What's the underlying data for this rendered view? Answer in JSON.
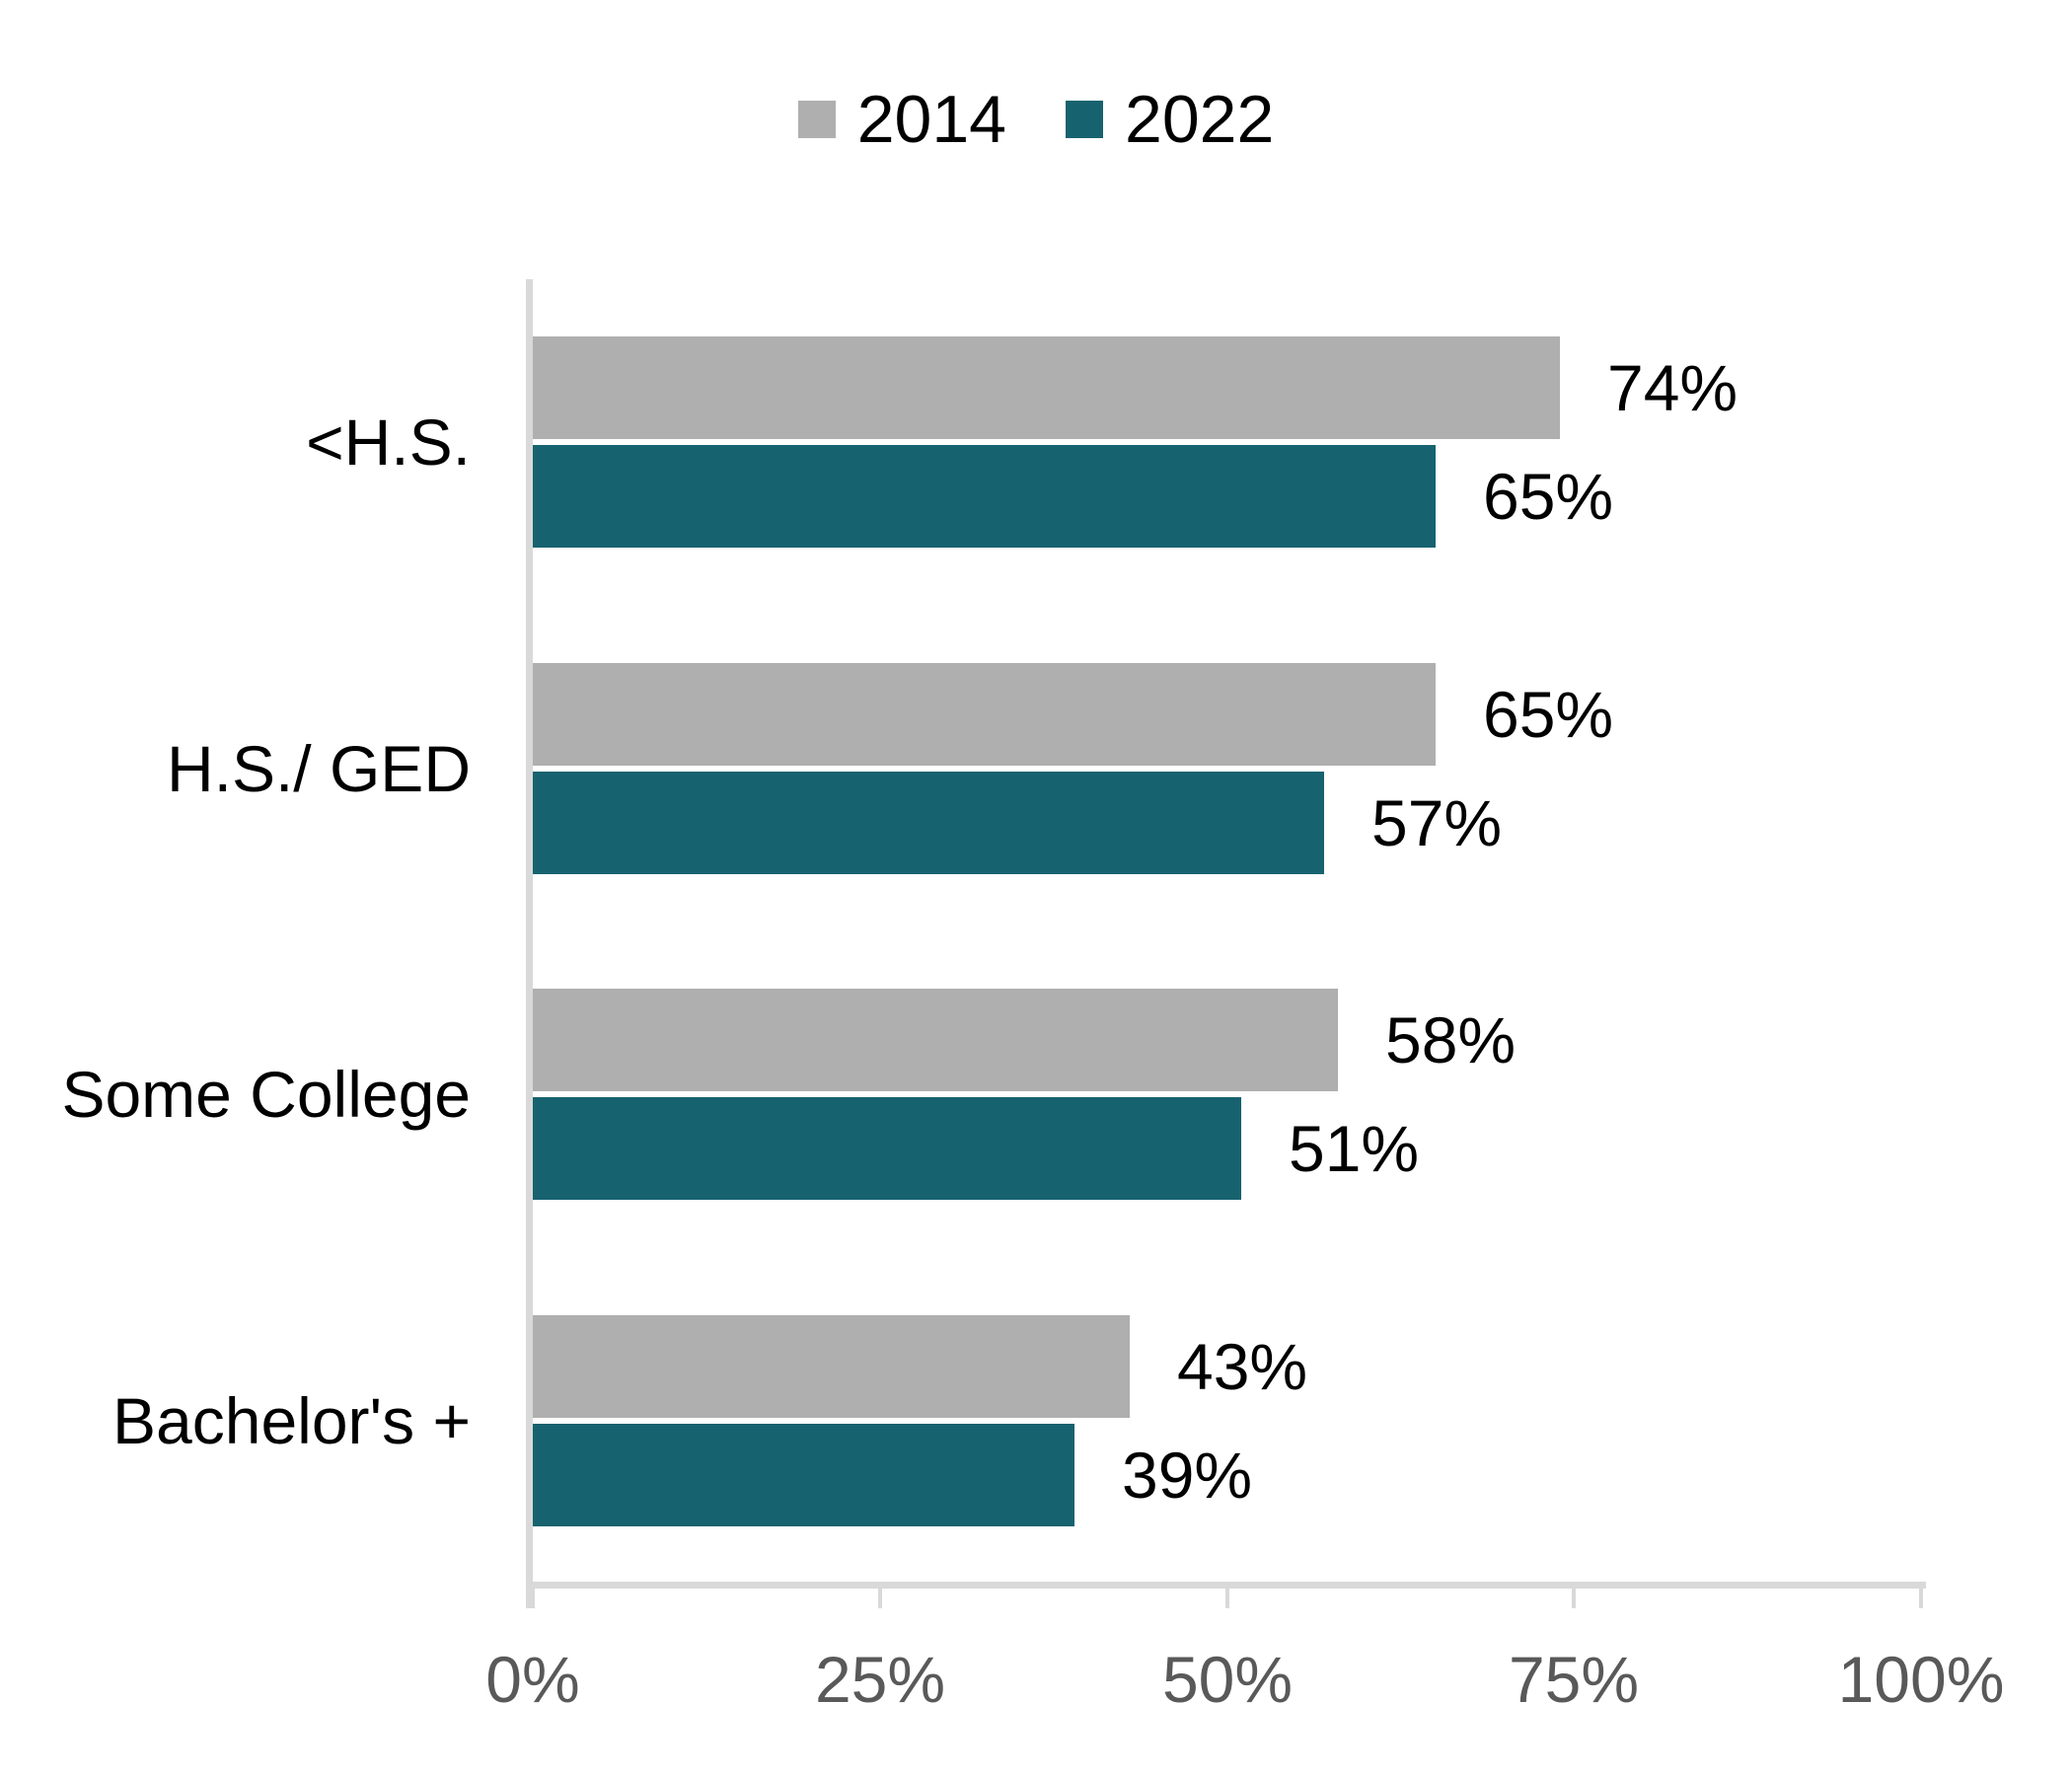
{
  "chart_data": {
    "type": "bar",
    "orientation": "horizontal",
    "title": "",
    "categories": [
      "<H.S.",
      "H.S./ GED",
      "Some College",
      "Bachelor's +"
    ],
    "series": [
      {
        "name": "2014",
        "color": "#AFAFAF",
        "values": [
          74,
          65,
          58,
          43
        ],
        "labels": [
          "74%",
          "65%",
          "58%",
          "43%"
        ]
      },
      {
        "name": "2022",
        "color": "#17626F",
        "values": [
          65,
          57,
          51,
          39
        ],
        "labels": [
          "65%",
          "57%",
          "51%",
          "39%"
        ]
      }
    ],
    "x_axis": {
      "range": [
        0,
        100
      ],
      "tick_values": [
        0,
        25,
        50,
        75,
        100
      ],
      "tick_labels": [
        "0%",
        "25%",
        "50%",
        "75%",
        "100%"
      ]
    },
    "legend_position": "top-center",
    "grid": false,
    "colors": {
      "axis_line": "#D9D9D9",
      "tick_label_text": "#595959",
      "data_label_text": "#000000",
      "category_label_text": "#000000",
      "background": "#FFFFFF"
    }
  }
}
